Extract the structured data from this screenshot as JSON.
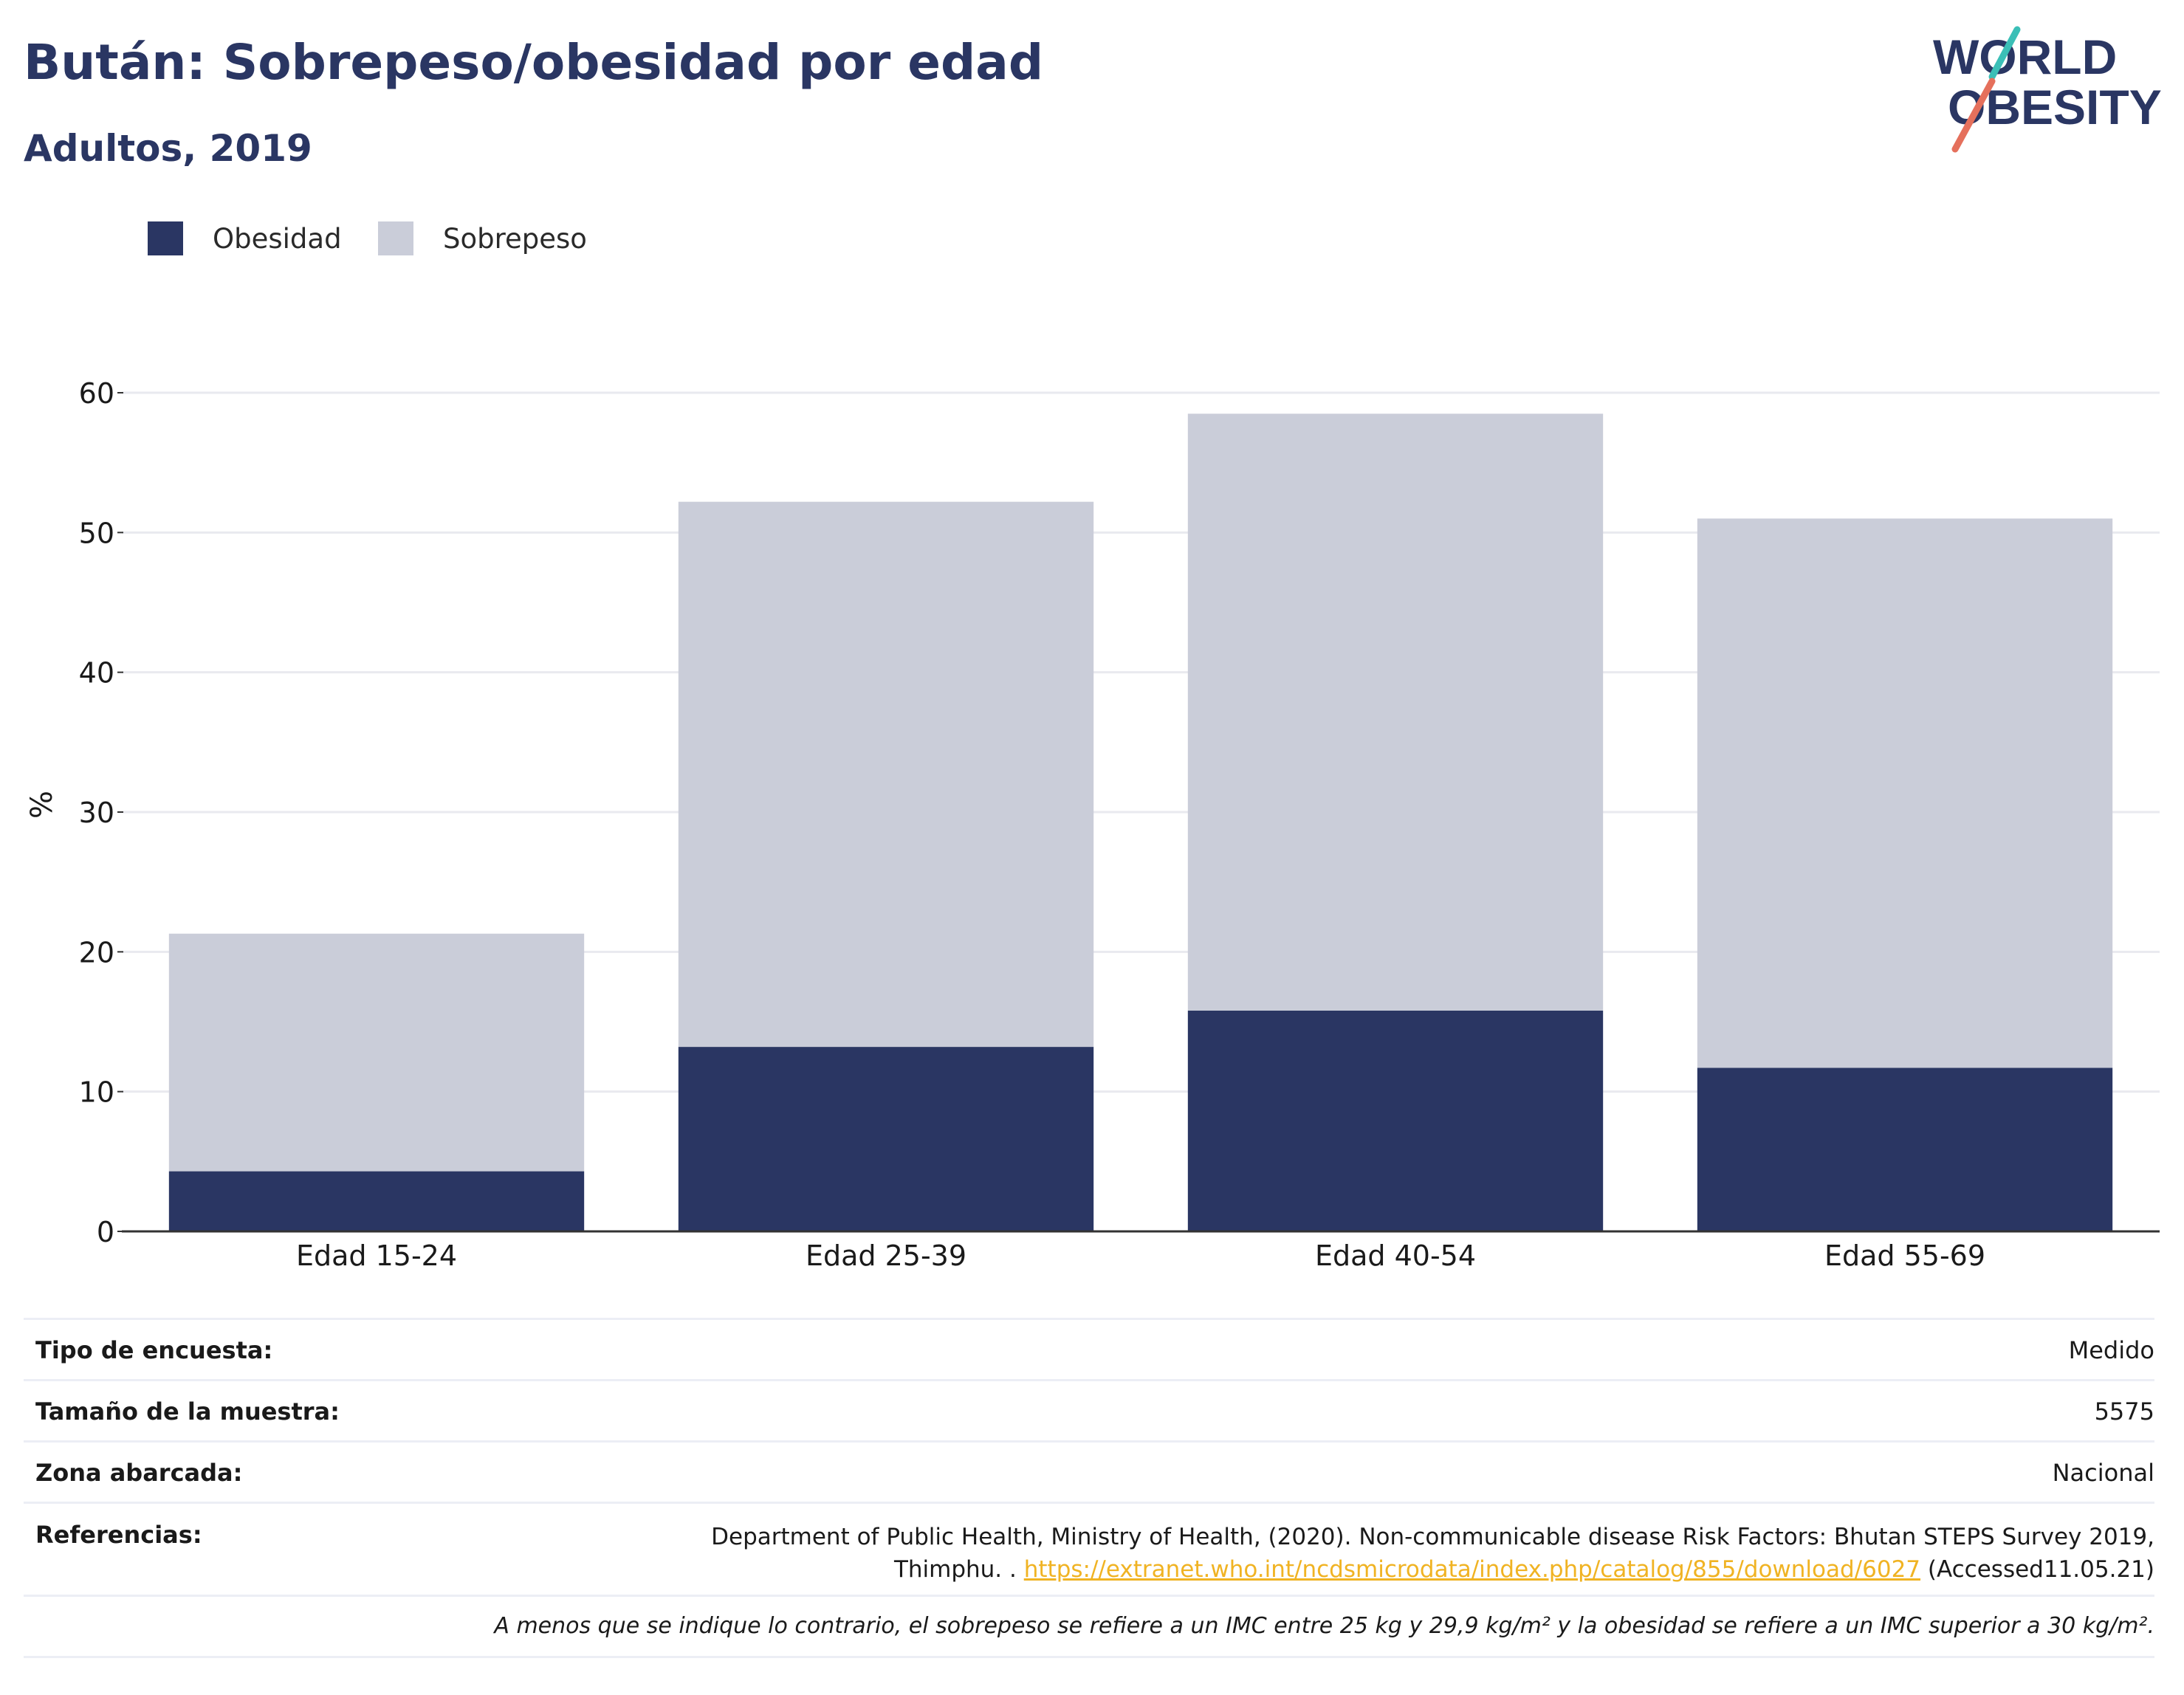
{
  "title": "Bután: Sobrepeso/obesidad por edad",
  "subtitle": "Adultos, 2019",
  "logo": {
    "line1": "WORLD",
    "line2": "OBESITY"
  },
  "legend": [
    {
      "label": "Obesidad",
      "color": "#2a3663"
    },
    {
      "label": "Sobrepeso",
      "color": "#cacdd9"
    }
  ],
  "chart_data": {
    "type": "bar",
    "stacked": true,
    "categories": [
      "Edad 15-24",
      "Edad 25-39",
      "Edad 40-54",
      "Edad 55-69"
    ],
    "series": [
      {
        "name": "Obesidad",
        "values": [
          4.3,
          13.2,
          15.8,
          11.7
        ],
        "color": "#2a3663"
      },
      {
        "name": "Sobrepeso",
        "values": [
          17.0,
          39.0,
          42.7,
          39.3
        ],
        "color": "#cacdd9"
      }
    ],
    "ylabel": "%",
    "ylim": [
      0,
      60
    ],
    "yticks": [
      0,
      10,
      20,
      30,
      40,
      50,
      60
    ],
    "grid": true,
    "legend_position": "top-left"
  },
  "meta": {
    "survey_type_label": "Tipo de encuesta:",
    "survey_type_value": "Medido",
    "sample_size_label": "Tamaño de la muestra:",
    "sample_size_value": "5575",
    "area_label": "Zona abarcada:",
    "area_value": "Nacional",
    "references_label": "Referencias:",
    "references_line1": "Department of Public Health, Ministry of Health, (2020). Non-communicable disease Risk Factors: Bhutan STEPS Survey 2019,",
    "references_line2_prefix": "Thimphu. . ",
    "references_link": "https://extranet.who.int/ncdsmicrodata/index.php/catalog/855/download/6027",
    "references_line2_suffix": " (Accessed11.05.21)"
  },
  "note": "A menos que se indique lo contrario, el sobrepeso se refiere a un IMC entre 25 kg y 29,9 kg/m² y la obesidad se refiere a un IMC superior a 30 kg/m²."
}
